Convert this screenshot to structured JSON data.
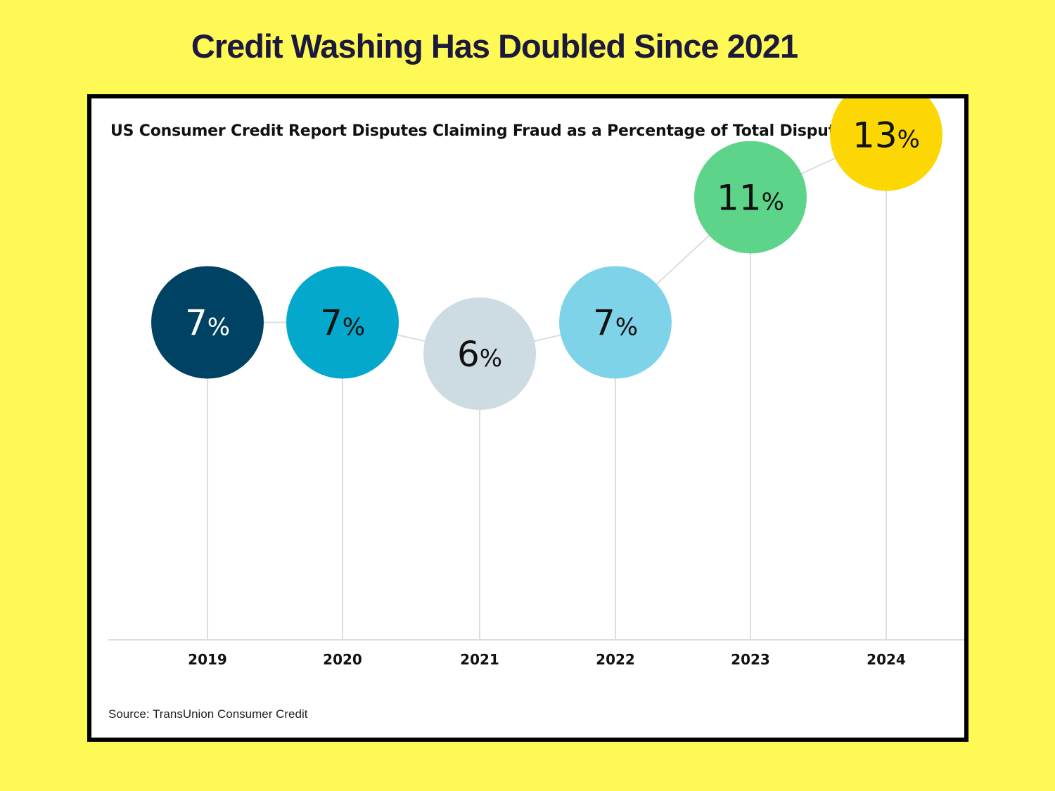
{
  "headline": "Credit Washing Has Doubled Since 2021",
  "source": "Source: TransUnion Consumer Credit",
  "chart_data": {
    "type": "line",
    "title": "US Consumer Credit Report Disputes Claiming Fraud as a Percentage of Total Disputes",
    "xlabel": "",
    "ylabel": "",
    "categories": [
      "2019",
      "2020",
      "2021",
      "2022",
      "2023",
      "2024"
    ],
    "values": [
      7,
      7,
      6,
      7,
      11,
      13
    ],
    "unit": "%",
    "point_colors": [
      "#004263",
      "#03A8CC",
      "#CCDCE2",
      "#7FD3E8",
      "#5DD489",
      "#FCD703"
    ],
    "label_colors": [
      "#FFFFFF",
      "#111111",
      "#111111",
      "#111111",
      "#111111",
      "#111111"
    ],
    "grid": false
  }
}
